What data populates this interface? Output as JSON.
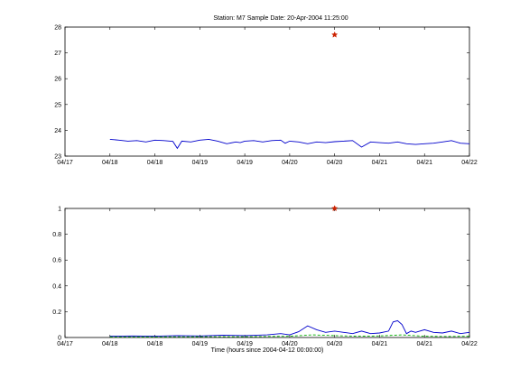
{
  "figure": {
    "title": "Station: M7  Sample Date: 20-Apr-2004 11:25:00",
    "xlabel": "Time (hours since 2004-04-12 00:00:00)"
  },
  "chart_data": [
    {
      "type": "line",
      "title": "Station: M7  Sample Date: 20-Apr-2004 11:25:00",
      "xlabel": "",
      "ylabel": "",
      "x_tick_labels": [
        "04/17",
        "04/18",
        "04/18",
        "04/19",
        "04/19",
        "04/20",
        "04/20",
        "04/21",
        "04/21",
        "04/22"
      ],
      "xlim": [
        0,
        9
      ],
      "ylim": [
        23,
        28
      ],
      "y_ticks": [
        23,
        24,
        25,
        26,
        27,
        28
      ],
      "grid": false,
      "series": [
        {
          "color": "#0000cc",
          "x": [
            1.0,
            1.2,
            1.4,
            1.6,
            1.8,
            2.0,
            2.2,
            2.4,
            2.5,
            2.6,
            2.8,
            3.0,
            3.2,
            3.4,
            3.6,
            3.8,
            3.9,
            4.0,
            4.2,
            4.4,
            4.6,
            4.8,
            4.9,
            5.0,
            5.2,
            5.4,
            5.6,
            5.8,
            6.0,
            6.2,
            6.4,
            6.6,
            6.8,
            7.0,
            7.2,
            7.4,
            7.6,
            7.8,
            8.0,
            8.2,
            8.4,
            8.6,
            8.8,
            9.0
          ],
          "y": [
            23.65,
            23.62,
            23.58,
            23.6,
            23.55,
            23.62,
            23.6,
            23.57,
            23.3,
            23.58,
            23.55,
            23.62,
            23.65,
            23.58,
            23.48,
            23.55,
            23.52,
            23.58,
            23.6,
            23.55,
            23.6,
            23.62,
            23.5,
            23.58,
            23.55,
            23.48,
            23.55,
            23.52,
            23.56,
            23.58,
            23.6,
            23.35,
            23.55,
            23.52,
            23.5,
            23.55,
            23.48,
            23.45,
            23.48,
            23.5,
            23.55,
            23.6,
            23.5,
            23.48
          ]
        },
        {
          "marker": "star",
          "color": "#cc2200",
          "x": [
            6.0
          ],
          "y": [
            27.7
          ]
        }
      ]
    },
    {
      "type": "line",
      "title": "",
      "xlabel": "Time (hours since 2004-04-12 00:00:00)",
      "ylabel": "",
      "x_tick_labels": [
        "04/17",
        "04/18",
        "04/18",
        "04/19",
        "04/19",
        "04/20",
        "04/20",
        "04/21",
        "04/21",
        "04/22"
      ],
      "xlim": [
        0,
        9
      ],
      "ylim": [
        0,
        1
      ],
      "y_ticks": [
        0,
        0.2,
        0.4,
        0.6,
        0.8,
        1
      ],
      "y_tick_labels": [
        "0",
        "0.2",
        "0.4",
        "0.6",
        "0.8",
        "1"
      ],
      "grid": false,
      "series": [
        {
          "color": "#0000cc",
          "x": [
            1.0,
            1.5,
            2.0,
            2.5,
            3.0,
            3.5,
            4.0,
            4.5,
            4.8,
            5.0,
            5.2,
            5.4,
            5.6,
            5.8,
            6.0,
            6.2,
            6.4,
            6.6,
            6.8,
            7.0,
            7.2,
            7.3,
            7.4,
            7.5,
            7.6,
            7.7,
            7.8,
            8.0,
            8.2,
            8.4,
            8.6,
            8.8,
            9.0
          ],
          "y": [
            0.01,
            0.012,
            0.01,
            0.015,
            0.012,
            0.018,
            0.015,
            0.02,
            0.03,
            0.02,
            0.045,
            0.09,
            0.06,
            0.04,
            0.05,
            0.04,
            0.03,
            0.05,
            0.03,
            0.035,
            0.05,
            0.12,
            0.13,
            0.1,
            0.03,
            0.05,
            0.04,
            0.06,
            0.04,
            0.035,
            0.05,
            0.03,
            0.04
          ]
        },
        {
          "color": "#00aa00",
          "style": "dashed",
          "x": [
            1.0,
            2.0,
            3.0,
            4.0,
            5.0,
            5.5,
            6.0,
            6.5,
            7.0,
            7.5,
            8.0,
            8.5,
            9.0
          ],
          "y": [
            0.005,
            0.005,
            0.006,
            0.006,
            0.01,
            0.02,
            0.015,
            0.01,
            0.012,
            0.02,
            0.01,
            0.008,
            0.01
          ]
        },
        {
          "marker": "star",
          "color": "#cc2200",
          "x": [
            6.0
          ],
          "y": [
            1.0
          ]
        }
      ]
    }
  ]
}
